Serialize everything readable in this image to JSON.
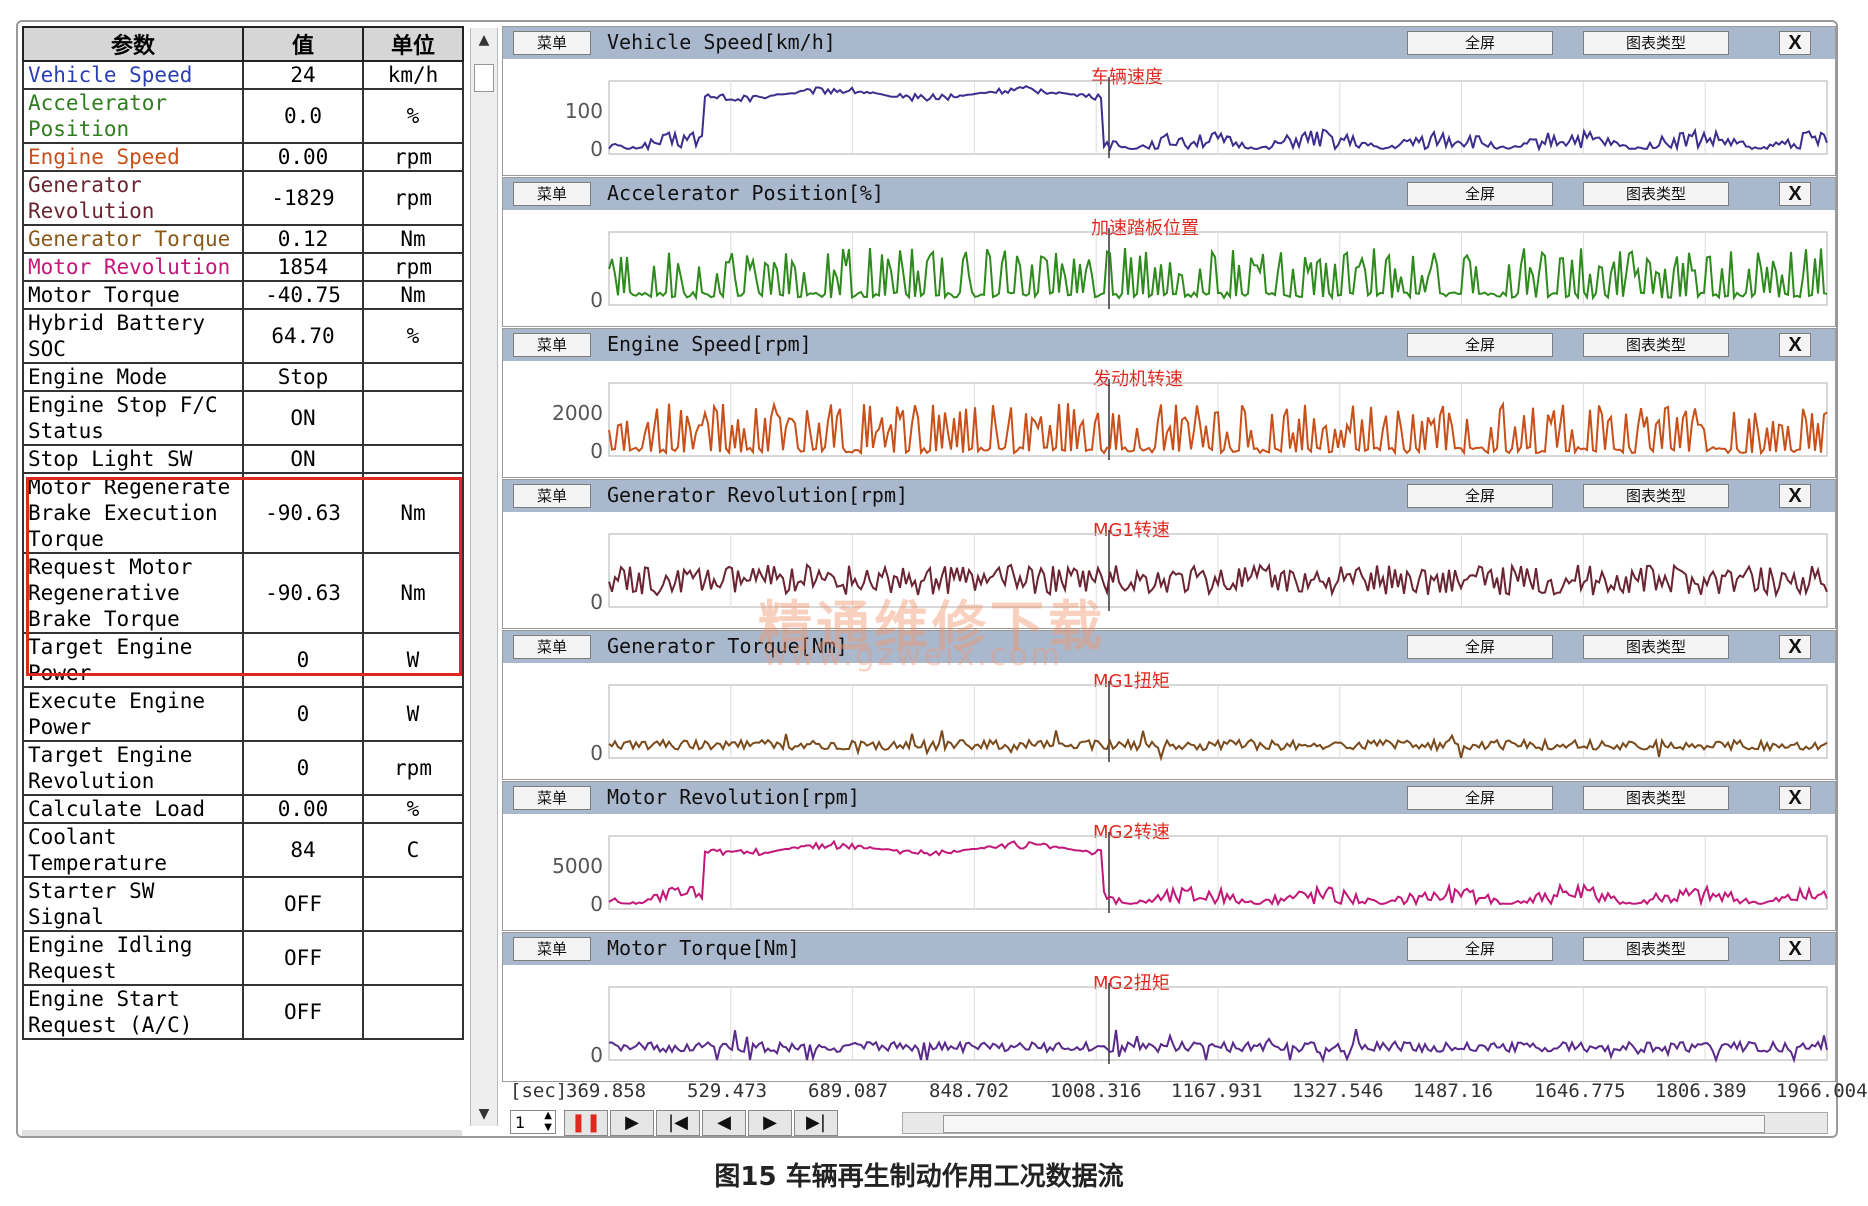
{
  "table": {
    "headers": [
      "参数",
      "值",
      "单位"
    ],
    "rows": [
      {
        "name": "Vehicle Speed",
        "value": "24",
        "unit": "km/h",
        "color": "#2b3fb5"
      },
      {
        "name": "Accelerator Position",
        "value": "0.0",
        "unit": "%",
        "color": "#2f7d1e"
      },
      {
        "name": "Engine Speed",
        "value": "0.00",
        "unit": "rpm",
        "color": "#c8501a"
      },
      {
        "name": "Generator Revolution",
        "value": "-1829",
        "unit": "rpm",
        "color": "#6a2433"
      },
      {
        "name": "Generator Torque",
        "value": "0.12",
        "unit": "Nm",
        "color": "#8a5a1a"
      },
      {
        "name": "Motor Revolution",
        "value": "1854",
        "unit": "rpm",
        "color": "#c2187a"
      },
      {
        "name": "Motor Torque",
        "value": "-40.75",
        "unit": "Nm",
        "color": "#000000"
      },
      {
        "name": "Hybrid Battery SOC",
        "value": "64.70",
        "unit": "%",
        "color": "#000000"
      },
      {
        "name": "Engine Mode",
        "value": "Stop",
        "unit": "",
        "color": "#000000"
      },
      {
        "name": "Engine Stop F/C Status",
        "value": "ON",
        "unit": "",
        "color": "#000000"
      },
      {
        "name": "Stop Light SW",
        "value": "ON",
        "unit": "",
        "color": "#000000"
      },
      {
        "name": "Motor Regenerate Brake Execution Torque",
        "value": "-90.63",
        "unit": "Nm",
        "color": "#000000"
      },
      {
        "name": "Request Motor Regenerative Brake Torque",
        "value": "-90.63",
        "unit": "Nm",
        "color": "#000000"
      },
      {
        "name": "Target Engine Power",
        "value": "0",
        "unit": "W",
        "color": "#000000"
      },
      {
        "name": "Execute Engine Power",
        "value": "0",
        "unit": "W",
        "color": "#000000"
      },
      {
        "name": "Target Engine Revolution",
        "value": "0",
        "unit": "rpm",
        "color": "#000000"
      },
      {
        "name": "Calculate Load",
        "value": "0.00",
        "unit": "%",
        "color": "#000000"
      },
      {
        "name": "Coolant Temperature",
        "value": "84",
        "unit": "C",
        "color": "#000000"
      },
      {
        "name": "Starter SW Signal",
        "value": "OFF",
        "unit": "",
        "color": "#000000"
      },
      {
        "name": "Engine Idling Request",
        "value": "OFF",
        "unit": "",
        "color": "#000000"
      },
      {
        "name": "Engine Start Request (A/C)",
        "value": "OFF",
        "unit": "",
        "color": "#000000"
      }
    ]
  },
  "panel_buttons": {
    "menu": "菜单",
    "full": "全屏",
    "type": "图表类型",
    "close": "X"
  },
  "panels": [
    {
      "title": "Vehicle Speed[km/h]",
      "annotation": "车辆速度",
      "color": "#3b2e8c",
      "ticks": [
        "100",
        "0"
      ]
    },
    {
      "title": "Accelerator Position[%]",
      "annotation": "加速踏板位置",
      "color": "#2f8a1e",
      "ticks": [
        "0"
      ]
    },
    {
      "title": "Engine Speed[rpm]",
      "annotation": "发动机转速",
      "color": "#c8501a",
      "ticks": [
        "2000",
        "0"
      ]
    },
    {
      "title": "Generator Revolution[rpm]",
      "annotation": "MG1转速",
      "color": "#6a2433",
      "ticks": [
        "0"
      ]
    },
    {
      "title": "Generator Torque[Nm]",
      "annotation": "MG1扭矩",
      "color": "#7a4a1a",
      "ticks": [
        "0"
      ]
    },
    {
      "title": "Motor Revolution[rpm]",
      "annotation": "MG2转速",
      "color": "#c2187a",
      "ticks": [
        "5000",
        "0"
      ]
    },
    {
      "title": "Motor Torque[Nm]",
      "annotation": "MG2扭矩",
      "color": "#5a2a8a",
      "ticks": [
        "0"
      ]
    }
  ],
  "x_axis": {
    "unit_label": "[sec]",
    "ticks": [
      "369.858",
      "529.473",
      "689.087",
      "848.702",
      "1008.316",
      "1167.931",
      "1327.546",
      "1487.16",
      "1646.775",
      "1806.389",
      "1966.004"
    ]
  },
  "controls": {
    "page": "1",
    "pause": "❚❚",
    "play": "▶",
    "first": "|◀",
    "prev": "◀",
    "next": "▶",
    "last": "▶|"
  },
  "watermark": {
    "main": "精通维修下载",
    "url": "www.gzweix.com"
  },
  "caption": "图15 车辆再生制动作用工况数据流"
}
